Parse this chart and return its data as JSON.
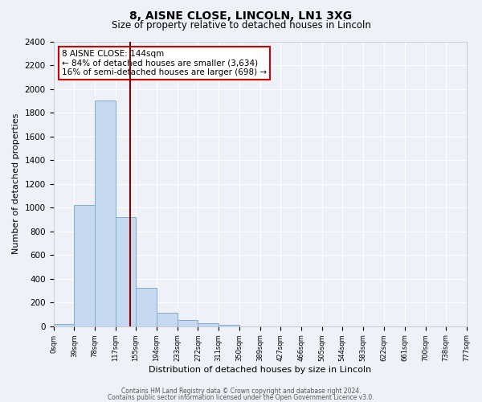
{
  "title": "8, AISNE CLOSE, LINCOLN, LN1 3XG",
  "subtitle": "Size of property relative to detached houses in Lincoln",
  "xlabel": "Distribution of detached houses by size in Lincoln",
  "ylabel": "Number of detached properties",
  "bin_edges": [
    0,
    39,
    78,
    117,
    155,
    194,
    233,
    272,
    311,
    350,
    389,
    427,
    466,
    505,
    544,
    583,
    622,
    661,
    700,
    738,
    777
  ],
  "bin_labels": [
    "0sqm",
    "39sqm",
    "78sqm",
    "117sqm",
    "155sqm",
    "194sqm",
    "233sqm",
    "272sqm",
    "311sqm",
    "350sqm",
    "389sqm",
    "427sqm",
    "466sqm",
    "505sqm",
    "544sqm",
    "583sqm",
    "622sqm",
    "661sqm",
    "700sqm",
    "738sqm",
    "777sqm"
  ],
  "bar_heights": [
    20,
    1020,
    1900,
    920,
    320,
    110,
    55,
    25,
    15,
    0,
    0,
    0,
    0,
    0,
    0,
    0,
    0,
    0,
    0,
    0
  ],
  "bar_color": "#c6d9f0",
  "bar_edgecolor": "#7bafd4",
  "vline_x": 144,
  "vline_color": "#8b0000",
  "ylim": [
    0,
    2400
  ],
  "yticks": [
    0,
    200,
    400,
    600,
    800,
    1000,
    1200,
    1400,
    1600,
    1800,
    2000,
    2200,
    2400
  ],
  "annotation_title": "8 AISNE CLOSE: 144sqm",
  "annotation_line1": "← 84% of detached houses are smaller (3,634)",
  "annotation_line2": "16% of semi-detached houses are larger (698) →",
  "annotation_box_color": "#ffffff",
  "annotation_box_edgecolor": "#cc0000",
  "footer_line1": "Contains HM Land Registry data © Crown copyright and database right 2024.",
  "footer_line2": "Contains public sector information licensed under the Open Government Licence v3.0.",
  "background_color": "#eef2f8",
  "grid_color": "#ffffff"
}
